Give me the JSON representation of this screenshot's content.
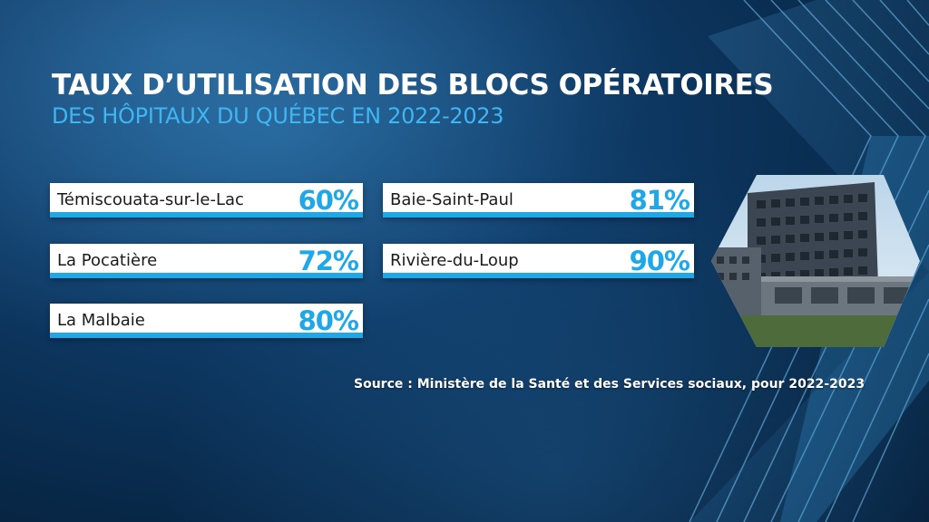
{
  "title": "TAUX D’UTILISATION DES BLOCS OPÉRATOIRES",
  "subtitle": "DES HÔPITAUX DU QUÉBEC EN 2022-2023",
  "hospitals": [
    {
      "name": "Témiscouata-sur-le-Lac",
      "rate": "60%"
    },
    {
      "name": "La Pocatière",
      "rate": "72%"
    },
    {
      "name": "La Malbaie",
      "rate": "80%"
    },
    {
      "name": "Baie-Saint-Paul",
      "rate": "81%"
    },
    {
      "name": "Rivière-du-Loup",
      "rate": "90%"
    }
  ],
  "source": "Source : Ministère de la Santé et des Services sociaux, pour 2022-2023",
  "colors": {
    "accent": "#1fa8e8",
    "subtitle": "#3fb6f2",
    "background": "#0e3a66"
  }
}
